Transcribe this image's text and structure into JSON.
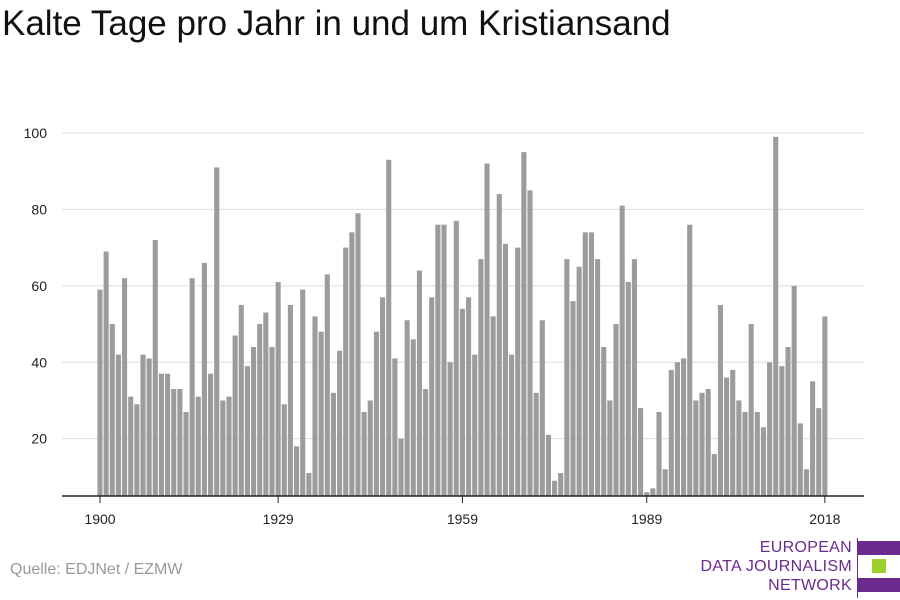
{
  "title": "Kalte Tage pro Jahr in und um Kristiansand",
  "source": "Quelle: EDJNet / EZMW",
  "logo": {
    "lines": [
      "EUROPEAN",
      "DATA JOURNALISM",
      "NETWORK"
    ],
    "colors": {
      "text": "#6b2a8e",
      "bar_purple": "#6b2a8e",
      "bar_green": "#9bd12a"
    }
  },
  "colors": {
    "bar": "#9c9c9c",
    "grid": "#dddddd",
    "axis": "#222222",
    "tick_text": "#222222"
  },
  "chart_data": {
    "type": "bar",
    "title": "Kalte Tage pro Jahr in und um Kristiansand",
    "xlabel": "",
    "ylabel": "",
    "x_start": 1900,
    "x_ticks": [
      1900,
      1929,
      1959,
      1989,
      2018
    ],
    "y_ticks": [
      20,
      40,
      60,
      80,
      100
    ],
    "ylim": [
      5,
      105
    ],
    "grid": true,
    "values": [
      59,
      69,
      50,
      42,
      62,
      31,
      29,
      42,
      41,
      72,
      37,
      37,
      33,
      33,
      27,
      62,
      31,
      66,
      37,
      91,
      30,
      31,
      47,
      55,
      39,
      44,
      50,
      53,
      44,
      61,
      29,
      55,
      18,
      59,
      11,
      52,
      48,
      63,
      32,
      43,
      70,
      74,
      79,
      27,
      30,
      48,
      57,
      93,
      41,
      20,
      51,
      46,
      64,
      33,
      57,
      76,
      76,
      40,
      77,
      54,
      57,
      42,
      67,
      92,
      52,
      84,
      71,
      42,
      70,
      95,
      85,
      32,
      51,
      21,
      9,
      11,
      67,
      56,
      65,
      74,
      74,
      67,
      44,
      30,
      50,
      81,
      61,
      67,
      28,
      6,
      7,
      27,
      12,
      38,
      40,
      41,
      76,
      30,
      32,
      33,
      16,
      55,
      36,
      38,
      30,
      27,
      50,
      27,
      23,
      40,
      99,
      39,
      44,
      60,
      24,
      12,
      35,
      28,
      52
    ]
  }
}
